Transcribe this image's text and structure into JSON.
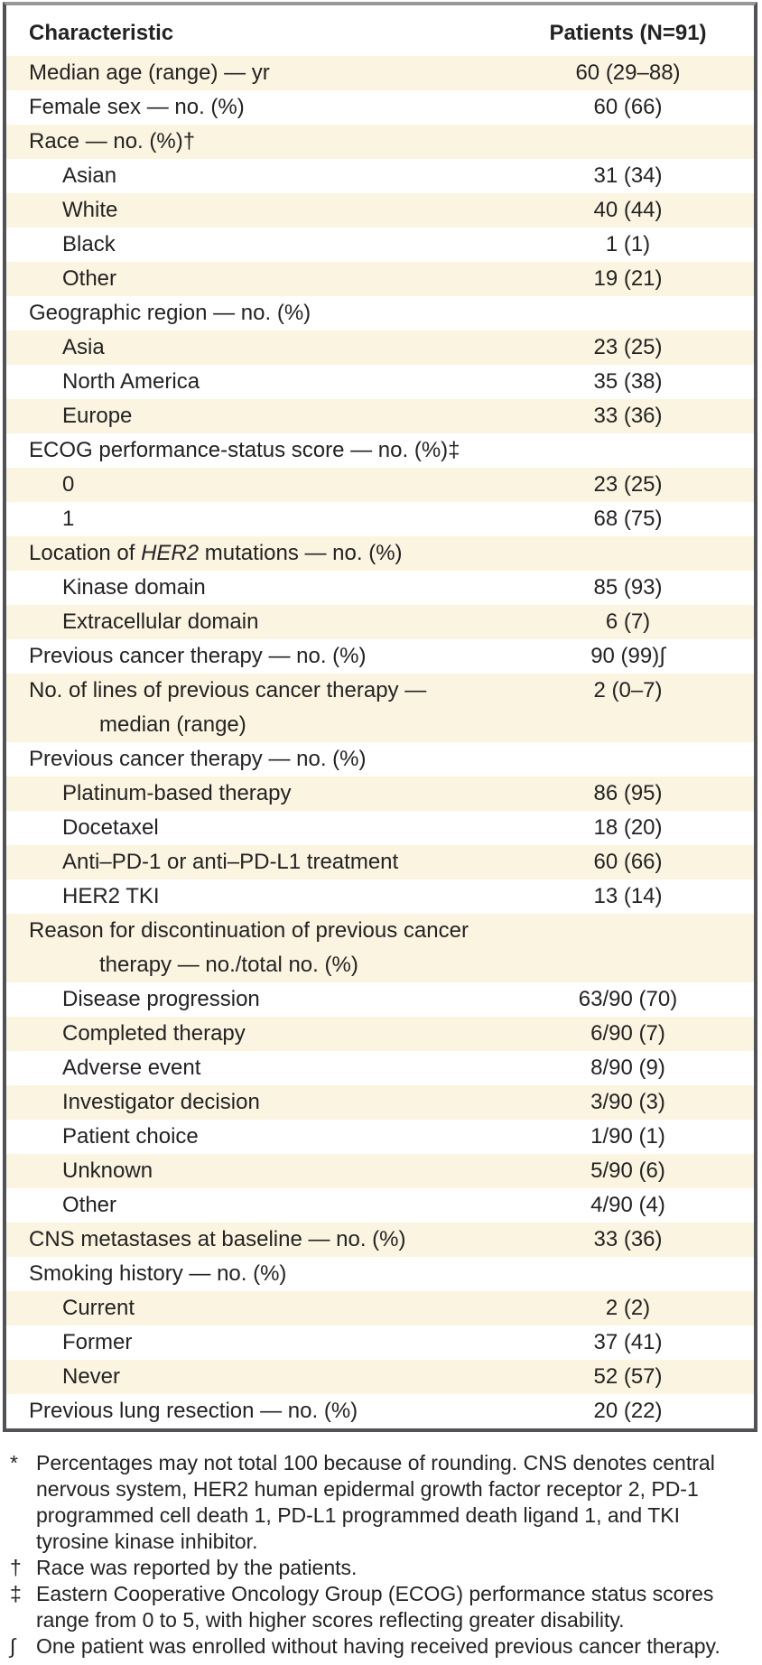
{
  "colors": {
    "cream_row": "#fbf4e0",
    "white_row": "#ffffff",
    "text": "#232323",
    "border_dark": "#515257",
    "border_top_gray": "#98989a"
  },
  "table": {
    "header": {
      "characteristic": "Characteristic",
      "patients": "Patients (N=91)"
    },
    "rows": [
      {
        "label": "Median age (range) — yr",
        "value": "60 (29–88)",
        "indent": 0
      },
      {
        "label": "Female sex — no. (%)",
        "value": "60 (66)",
        "indent": 0
      },
      {
        "label": "Race — no. (%)†",
        "value": "",
        "indent": 0
      },
      {
        "label": "Asian",
        "value": "31 (34)",
        "indent": 1
      },
      {
        "label": "White",
        "value": "40 (44)",
        "indent": 1
      },
      {
        "label": "Black",
        "value": "1 (1)",
        "indent": 1
      },
      {
        "label": "Other",
        "value": "19 (21)",
        "indent": 1
      },
      {
        "label": "Geographic region — no. (%)",
        "value": "",
        "indent": 0
      },
      {
        "label": "Asia",
        "value": "23 (25)",
        "indent": 1
      },
      {
        "label": "North America",
        "value": "35 (38)",
        "indent": 1
      },
      {
        "label": "Europe",
        "value": "33 (36)",
        "indent": 1
      },
      {
        "label": "ECOG performance-status score — no. (%)‡",
        "value": "",
        "indent": 0
      },
      {
        "label": "0",
        "value": "23 (25)",
        "indent": 1
      },
      {
        "label": "1",
        "value": "68 (75)",
        "indent": 1
      },
      {
        "segments": [
          {
            "t": "Location of "
          },
          {
            "t": "HER2",
            "i": true
          },
          {
            "t": " mutations — no. (%)"
          }
        ],
        "value": "",
        "indent": 0
      },
      {
        "label": "Kinase domain",
        "value": "85 (93)",
        "indent": 1
      },
      {
        "label": "Extracellular domain",
        "value": "6 (7)",
        "indent": 1
      },
      {
        "label": "Previous cancer therapy — no. (%)",
        "value": "90 (99)∫",
        "indent": 0
      },
      {
        "label": "No. of lines of previous cancer therapy —",
        "label2": "median (range)",
        "value": "2 (0–7)",
        "indent": 0
      },
      {
        "label": "Previous cancer therapy — no. (%)",
        "value": "",
        "indent": 0
      },
      {
        "label": "Platinum-based therapy",
        "value": "86 (95)",
        "indent": 1
      },
      {
        "label": "Docetaxel",
        "value": "18 (20)",
        "indent": 1
      },
      {
        "label": "Anti–PD-1 or anti–PD-L1 treatment",
        "value": "60 (66)",
        "indent": 1
      },
      {
        "label": "HER2 TKI",
        "value": "13 (14)",
        "indent": 1
      },
      {
        "label": "Reason for discontinuation of previous cancer",
        "label2": "therapy — no./total no. (%)",
        "value": "",
        "indent": 0
      },
      {
        "label": "Disease progression",
        "value": "63/90 (70)",
        "indent": 1
      },
      {
        "label": "Completed therapy",
        "value": "6/90 (7)",
        "indent": 1
      },
      {
        "label": "Adverse event",
        "value": "8/90 (9)",
        "indent": 1
      },
      {
        "label": "Investigator decision",
        "value": "3/90 (3)",
        "indent": 1
      },
      {
        "label": "Patient choice",
        "value": "1/90 (1)",
        "indent": 1
      },
      {
        "label": "Unknown",
        "value": "5/90 (6)",
        "indent": 1
      },
      {
        "label": "Other",
        "value": "4/90 (4)",
        "indent": 1
      },
      {
        "label": "CNS metastases at baseline — no. (%)",
        "value": "33 (36)",
        "indent": 0
      },
      {
        "label": "Smoking history — no. (%)",
        "value": "",
        "indent": 0
      },
      {
        "label": "Current",
        "value": "2 (2)",
        "indent": 1
      },
      {
        "label": "Former",
        "value": "37 (41)",
        "indent": 1
      },
      {
        "label": "Never",
        "value": "52 (57)",
        "indent": 1
      },
      {
        "label": "Previous lung resection — no. (%)",
        "value": "20 (22)",
        "indent": 0
      }
    ]
  },
  "footnotes": [
    {
      "marker": "*",
      "text": "Percentages may not total 100 because of rounding. CNS denotes central nervous system, HER2 human epidermal growth factor receptor 2, PD-1 programmed cell death 1, PD-L1 programmed death ligand 1, and TKI tyrosine kinase inhibitor."
    },
    {
      "marker": "†",
      "text": "Race was reported by the patients."
    },
    {
      "marker": "‡",
      "text": "Eastern Cooperative Oncology Group (ECOG) performance status scores range from 0 to 5, with higher scores reflecting greater disability."
    },
    {
      "marker": "∫",
      "text": "One patient was enrolled without having received previous cancer therapy."
    }
  ]
}
